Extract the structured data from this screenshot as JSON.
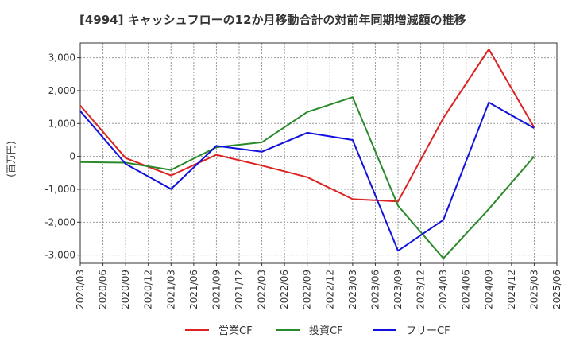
{
  "chart_data": {
    "type": "line",
    "title": "[4994]  キャッシュフローの12か月移動合計の対前年同期増減額の推移",
    "ylabel": "(百万円)",
    "xlabel": "",
    "ylim": [
      -3250,
      3450
    ],
    "yticks": [
      -3000,
      -2000,
      -1000,
      0,
      1000,
      2000,
      3000
    ],
    "ytick_labels": [
      "-3,000",
      "-2,000",
      "-1,000",
      "0",
      "1,000",
      "2,000",
      "3,000"
    ],
    "categories": [
      "2020/03",
      "2020/06",
      "2020/09",
      "2020/12",
      "2021/03",
      "2021/06",
      "2021/09",
      "2021/12",
      "2022/03",
      "2022/06",
      "2022/09",
      "2022/12",
      "2023/03",
      "2023/06",
      "2023/09",
      "2023/12",
      "2024/03",
      "2024/06",
      "2024/09",
      "2024/12",
      "2025/03",
      "2025/06"
    ],
    "grid": true,
    "legend_position": "bottom",
    "series": [
      {
        "name": "営業CF",
        "color": "#dd2222",
        "values": [
          1550,
          null,
          -50,
          null,
          -580,
          null,
          50,
          null,
          -280,
          null,
          -630,
          null,
          -1300,
          null,
          -1370,
          null,
          1170,
          null,
          3260,
          null,
          880,
          null
        ]
      },
      {
        "name": "投資CF",
        "color": "#2a8a2a",
        "values": [
          -170,
          null,
          -190,
          null,
          -410,
          null,
          280,
          null,
          430,
          null,
          1350,
          null,
          1800,
          null,
          -1500,
          null,
          -3100,
          null,
          -1600,
          null,
          0,
          null
        ]
      },
      {
        "name": "フリーCF",
        "color": "#1111dd",
        "values": [
          1380,
          null,
          -230,
          null,
          -990,
          null,
          320,
          null,
          140,
          null,
          720,
          null,
          500,
          null,
          -2870,
          null,
          -1930,
          null,
          1640,
          null,
          860,
          null
        ]
      }
    ]
  }
}
